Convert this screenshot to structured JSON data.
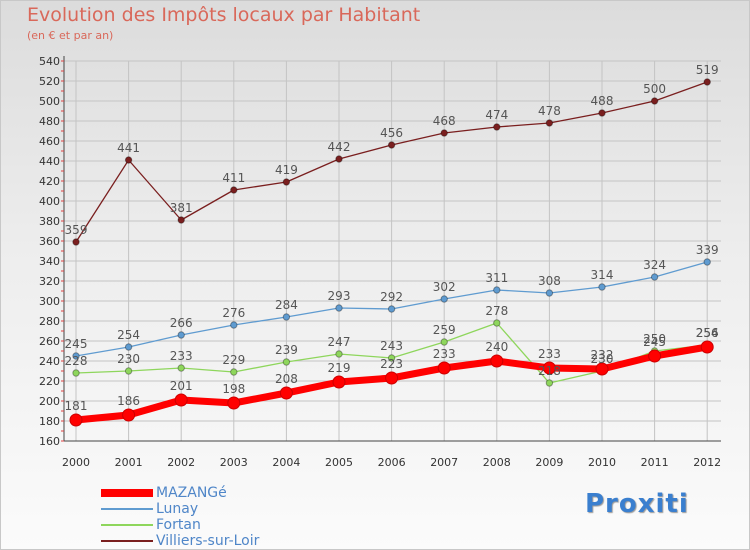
{
  "title": "Evolution des Impôts locaux par Habitant",
  "subtitle": "(en € et par an)",
  "logo": "Proxiti",
  "chart_data": {
    "type": "line",
    "x": [
      "2000",
      "2001",
      "2002",
      "2003",
      "2004",
      "2005",
      "2006",
      "2007",
      "2008",
      "2009",
      "2010",
      "2011",
      "2012"
    ],
    "ylim": [
      160,
      540
    ],
    "yticks": [
      160,
      180,
      200,
      220,
      240,
      260,
      280,
      300,
      320,
      340,
      360,
      380,
      400,
      420,
      440,
      460,
      480,
      500,
      520,
      540
    ],
    "grid": true,
    "legend_position": "bottom-left",
    "series": [
      {
        "name": "MAZANGé",
        "color": "#ff0000",
        "values": [
          181,
          186,
          201,
          198,
          208,
          219,
          223,
          233,
          240,
          233,
          232,
          245,
          254
        ],
        "labels": [
          "181",
          "186",
          "201",
          "198",
          "208",
          "219",
          "223",
          "233",
          "240",
          "233",
          "232",
          "245",
          "254"
        ]
      },
      {
        "name": "Lunay",
        "color": "#5f9bd0",
        "values": [
          245,
          254,
          266,
          276,
          284,
          293,
          292,
          302,
          311,
          308,
          314,
          324,
          339
        ],
        "labels": [
          "245",
          "254",
          "266",
          "276",
          "284",
          "293",
          "292",
          "302",
          "311",
          "308",
          "314",
          "324",
          "339"
        ]
      },
      {
        "name": "Fortan",
        "color": "#8ed65c",
        "values": [
          228,
          230,
          233,
          229,
          239,
          247,
          243,
          259,
          278,
          218,
          230,
          250,
          256
        ],
        "labels": [
          "228",
          "230",
          "233",
          "229",
          "239",
          "247",
          "243",
          "259",
          "278",
          "218",
          "230",
          "250",
          "256"
        ]
      },
      {
        "name": "Villiers-sur-Loir",
        "color": "#7a1f1f",
        "values": [
          359,
          441,
          381,
          411,
          419,
          442,
          456,
          468,
          474,
          478,
          488,
          500,
          519
        ],
        "labels": [
          "359",
          "441",
          "381",
          "411",
          "419",
          "442",
          "456",
          "468",
          "474",
          "478",
          "488",
          "500",
          "519"
        ]
      }
    ]
  }
}
